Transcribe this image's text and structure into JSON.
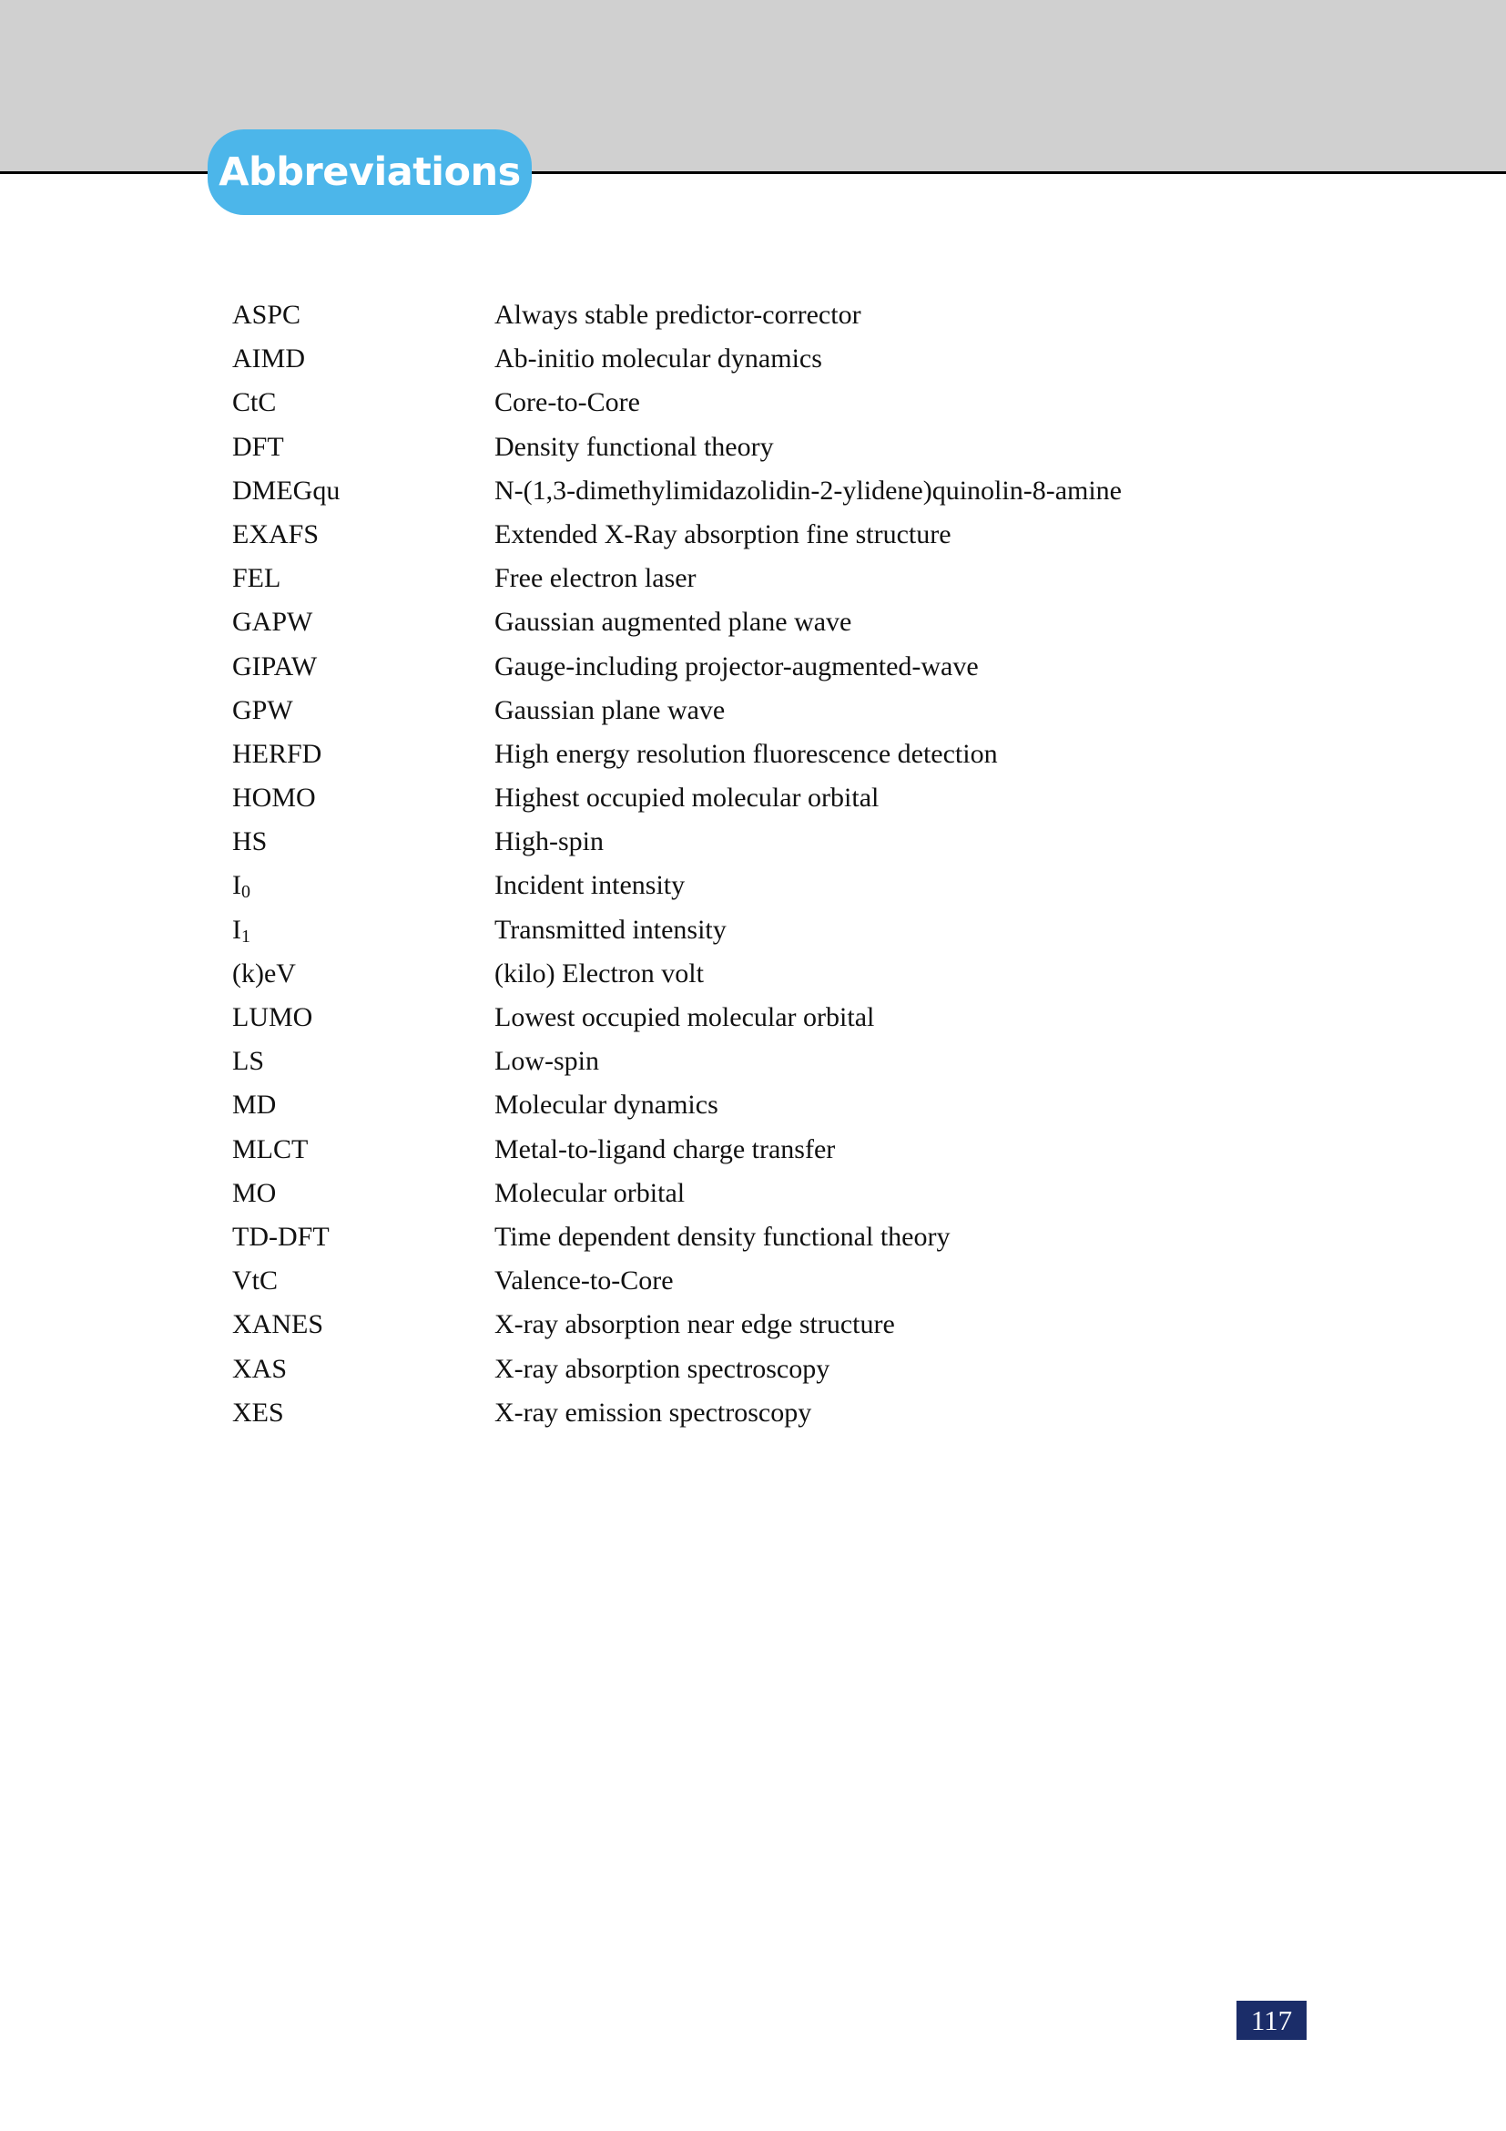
{
  "header": {
    "title": "Abbreviations",
    "accent": "#4cb6ea"
  },
  "entries": [
    {
      "abbr": "ASPC",
      "desc": "Always stable predictor-corrector"
    },
    {
      "abbr": "AIMD",
      "desc": "Ab-initio molecular dynamics"
    },
    {
      "abbr": "CtC",
      "desc": "Core-to-Core"
    },
    {
      "abbr": "DFT",
      "desc": "Density functional theory"
    },
    {
      "abbr": "DMEGqu",
      "desc": "N-(1,3-dimethylimidazolidin-2-ylidene)quinolin-8-amine"
    },
    {
      "abbr": "EXAFS",
      "desc": "Extended X-Ray absorption fine structure"
    },
    {
      "abbr": "FEL",
      "desc": "Free electron laser"
    },
    {
      "abbr": "GAPW",
      "desc": "Gaussian augmented plane wave"
    },
    {
      "abbr": "GIPAW",
      "desc": "Gauge-including projector-augmented-wave"
    },
    {
      "abbr": "GPW",
      "desc": "Gaussian plane wave"
    },
    {
      "abbr": "HERFD",
      "desc": "High energy resolution fluorescence detection"
    },
    {
      "abbr": "HOMO",
      "desc": "Highest occupied molecular orbital"
    },
    {
      "abbr": "HS",
      "desc": "High-spin"
    },
    {
      "abbr": "I",
      "sub": "0",
      "desc": "Incident intensity"
    },
    {
      "abbr": "I",
      "sub": "1",
      "desc": "Transmitted intensity"
    },
    {
      "abbr": "(k)eV",
      "desc": "(kilo) Electron volt"
    },
    {
      "abbr": "LUMO",
      "desc": "Lowest occupied molecular orbital"
    },
    {
      "abbr": "LS",
      "desc": "Low-spin"
    },
    {
      "abbr": "MD",
      "desc": "Molecular dynamics"
    },
    {
      "abbr": "MLCT",
      "desc": "Metal-to-ligand charge transfer"
    },
    {
      "abbr": "MO",
      "desc": "Molecular orbital"
    },
    {
      "abbr": "TD-DFT",
      "desc": "Time dependent density functional theory"
    },
    {
      "abbr": "VtC",
      "desc": "Valence-to-Core"
    },
    {
      "abbr": "XANES",
      "desc": "X-ray absorption near edge structure"
    },
    {
      "abbr": "XAS",
      "desc": "X-ray absorption spectroscopy"
    },
    {
      "abbr": "XES",
      "desc": "X-ray emission spectroscopy"
    }
  ],
  "footer": {
    "page_number": "117"
  }
}
